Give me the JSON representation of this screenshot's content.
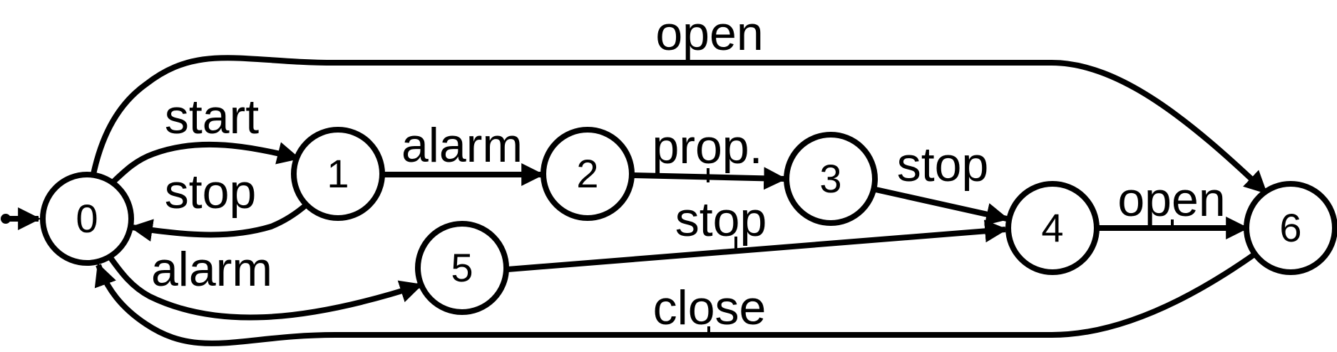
{
  "diagram": {
    "states": [
      {
        "id": "0",
        "label": "0",
        "initial": true
      },
      {
        "id": "1",
        "label": "1"
      },
      {
        "id": "2",
        "label": "2"
      },
      {
        "id": "3",
        "label": "3"
      },
      {
        "id": "4",
        "label": "4"
      },
      {
        "id": "5",
        "label": "5"
      },
      {
        "id": "6",
        "label": "6"
      }
    ],
    "transitions": [
      {
        "from": "0",
        "to": "1",
        "label": "start"
      },
      {
        "from": "1",
        "to": "0",
        "label": "stop"
      },
      {
        "from": "1",
        "to": "2",
        "label": "alarm"
      },
      {
        "from": "2",
        "to": "3",
        "label": "prop."
      },
      {
        "from": "3",
        "to": "4",
        "label": "stop"
      },
      {
        "from": "4",
        "to": "6",
        "label": "open"
      },
      {
        "from": "0",
        "to": "6",
        "label": "open"
      },
      {
        "from": "6",
        "to": "0",
        "label": "close"
      },
      {
        "from": "0",
        "to": "5",
        "label": "alarm"
      },
      {
        "from": "5",
        "to": "4",
        "label": "stop"
      }
    ],
    "colors": {
      "stroke": "#000000",
      "fill": "#ffffff"
    }
  }
}
